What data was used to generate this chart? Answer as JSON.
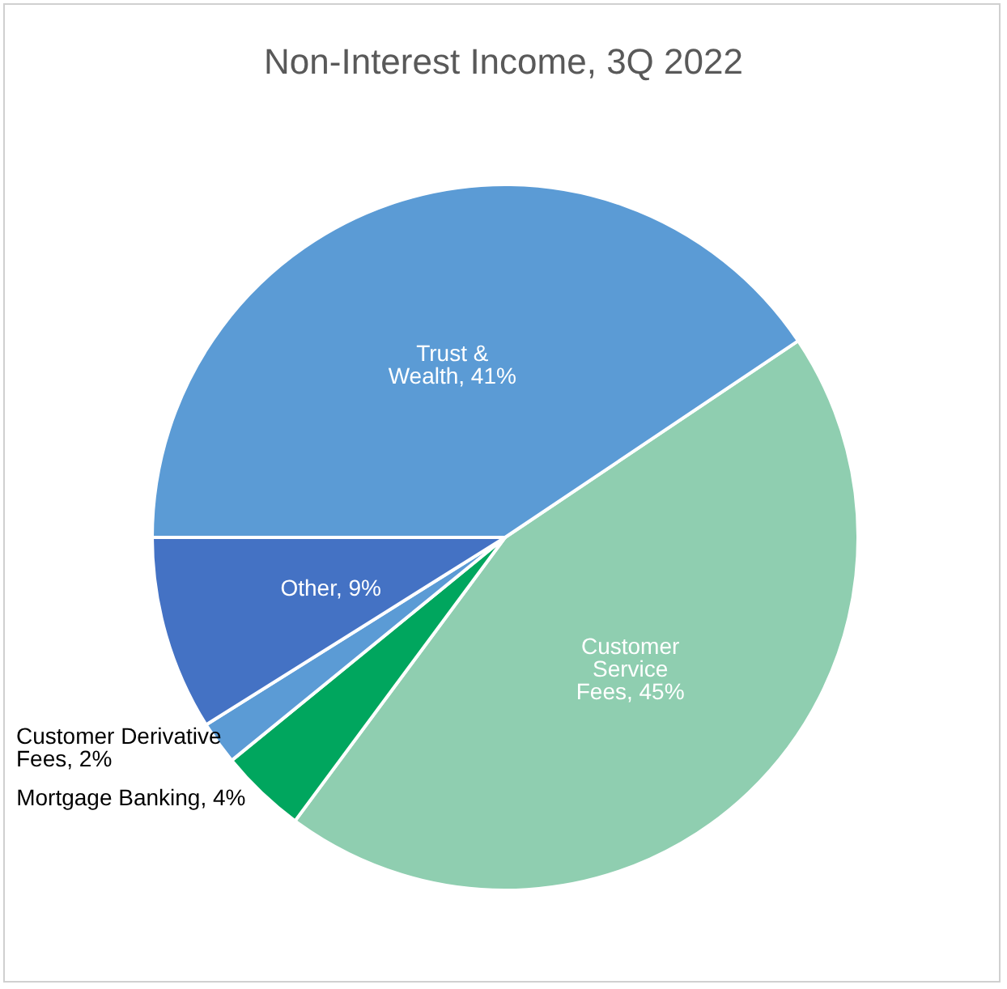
{
  "chart_data": {
    "type": "pie",
    "title": "Non-Interest Income, 3Q 2022",
    "categories": [
      "Customer Service Fees",
      "Mortgage Banking",
      "Customer Derivative Fees",
      "Other",
      "Trust & Wealth"
    ],
    "values": [
      45,
      4,
      2,
      9,
      41
    ],
    "value_labels": [
      "45%",
      "4%",
      "2%",
      "9%",
      "41%"
    ],
    "colors": [
      "#8fceb0",
      "#00a65e",
      "#5b9bd5",
      "#4472c4",
      "#5b9bd5"
    ],
    "legend": false
  }
}
